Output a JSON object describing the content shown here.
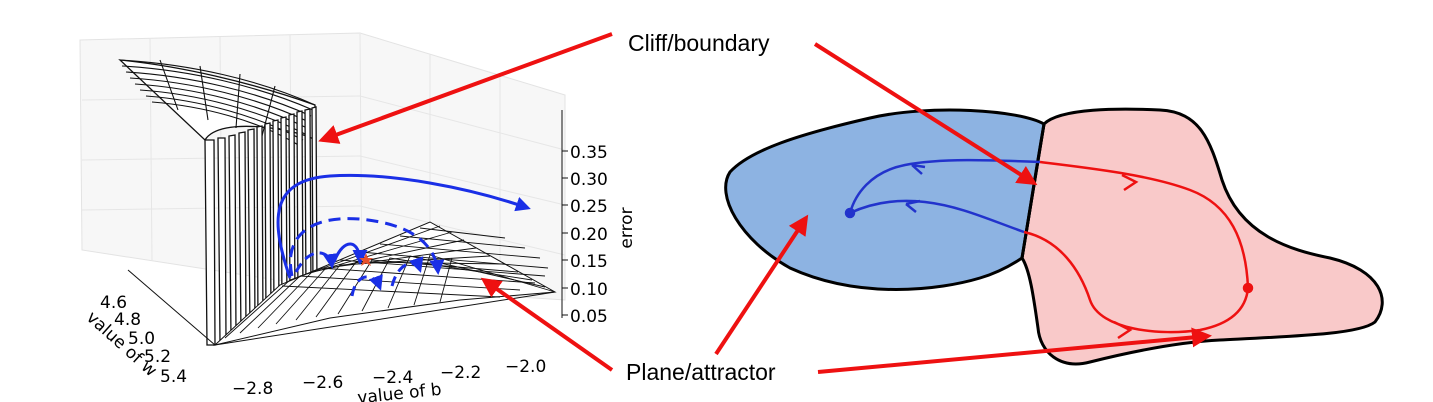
{
  "annotations": {
    "cliff_label": "Cliff/boundary",
    "plane_label": "Plane/attractor"
  },
  "plot3d": {
    "w_axis_label": "value of w",
    "b_axis_label": "value of b",
    "z_axis_label": "error",
    "w_ticks": [
      "4.6",
      "4.8",
      "5.0",
      "5.2",
      "5.4"
    ],
    "b_ticks": [
      "−2.8",
      "−2.6",
      "−2.4",
      "−2.2",
      "−2.0"
    ],
    "z_ticks": [
      "0.35",
      "0.30",
      "0.25",
      "0.20",
      "0.15",
      "0.10",
      "0.05"
    ]
  },
  "colors": {
    "arrow": "#ee1111",
    "trajectory_blue": "#1a2fe6",
    "blue_region": "#8db3e2",
    "pink_region": "#f9c9c9",
    "blue_path": "#2233cc",
    "red_path": "#ee1111"
  }
}
